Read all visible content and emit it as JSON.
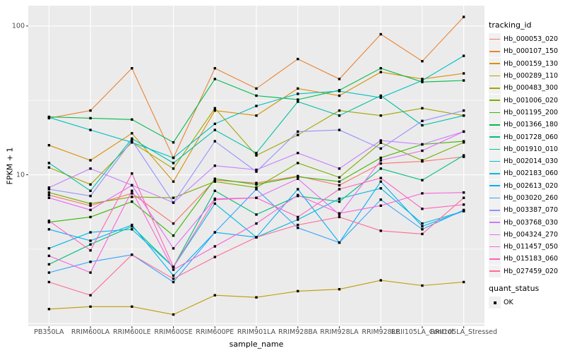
{
  "chart_data": {
    "type": "line",
    "title": "",
    "xlabel": "sample_name",
    "ylabel": "FPKM + 1",
    "y_scale": "log10",
    "ylim": [
      0.96,
      137
    ],
    "y_ticks": [
      100,
      10
    ],
    "y_breaks_major": [
      1,
      10,
      100
    ],
    "y_breaks_minor": [
      3.1623,
      31.623
    ],
    "grid": "on",
    "legend_position": "right",
    "panel_background": "#EBEBEB",
    "marker": "black-square",
    "categories": [
      "PB350LA",
      "RRIM600LA",
      "RRIM600LE",
      "RRIM600SE",
      "RRIM600PE",
      "RRIM901LA",
      "RRIM928BA",
      "RRIM928LA",
      "RRIM928LE",
      "RRII105LA_Control",
      "RRII105LA_Stressed"
    ],
    "series": [
      {
        "name": "Hb_000053_020",
        "color": "#F8766D",
        "values": [
          7.3,
          6.2,
          7.5,
          4.7,
          9.2,
          8.8,
          9.8,
          8.5,
          11.9,
          12.3,
          13.2
        ]
      },
      {
        "name": "Hb_000107_150",
        "color": "#EA8331",
        "values": [
          24,
          27,
          52,
          13,
          52,
          38,
          60,
          44,
          88,
          58,
          115
        ]
      },
      {
        "name": "Hb_000159_130",
        "color": "#D89000",
        "values": [
          15.8,
          12.5,
          19,
          9,
          27,
          25,
          38,
          34,
          49,
          44,
          48
        ]
      },
      {
        "name": "Hb_000289_110",
        "color": "#C09B00",
        "values": [
          1.25,
          1.3,
          1.3,
          1.15,
          1.55,
          1.5,
          1.65,
          1.7,
          1.95,
          1.8,
          1.9
        ]
      },
      {
        "name": "Hb_000483_300",
        "color": "#A3A500",
        "values": [
          11.2,
          8.6,
          16.5,
          11,
          28,
          13.5,
          18.5,
          27,
          25,
          28,
          25
        ]
      },
      {
        "name": "Hb_001006_020",
        "color": "#7CAE00",
        "values": [
          7.6,
          6.4,
          7.1,
          7,
          9,
          8.2,
          12,
          9.6,
          16.4,
          12.5,
          16.5
        ]
      },
      {
        "name": "Hb_001195_200",
        "color": "#39B600",
        "values": [
          4.8,
          5.2,
          6.6,
          3.9,
          9.4,
          8.6,
          9.7,
          9,
          13,
          16,
          16.8
        ]
      },
      {
        "name": "Hb_001366_180",
        "color": "#00BB4E",
        "values": [
          24.5,
          24,
          23.5,
          16.5,
          44,
          34,
          32,
          37,
          52,
          42,
          43
        ]
      },
      {
        "name": "Hb_001728_060",
        "color": "#00BF7D",
        "values": [
          2.5,
          3.4,
          4.5,
          2.4,
          7.8,
          5.4,
          7.2,
          6.6,
          11,
          9.2,
          13.5
        ]
      },
      {
        "name": "Hb_001910_010",
        "color": "#00C1A3",
        "values": [
          12,
          7.8,
          17.5,
          12,
          20,
          14,
          31,
          25,
          34,
          21.5,
          25
        ]
      },
      {
        "name": "Hb_002014_030",
        "color": "#00BFC4",
        "values": [
          24.3,
          20,
          16.5,
          13,
          22,
          29,
          35,
          36.5,
          33,
          43,
          63
        ]
      },
      {
        "name": "Hb_002183_060",
        "color": "#00BADE",
        "values": [
          3.2,
          4.1,
          4.3,
          2.4,
          6.4,
          3.8,
          5,
          6.9,
          8.1,
          4.7,
          5.7
        ]
      },
      {
        "name": "Hb_002613_020",
        "color": "#00B0F6",
        "values": [
          4.3,
          3.6,
          4.6,
          2.1,
          4.1,
          3.8,
          8,
          3.5,
          9,
          4.5,
          5.7
        ]
      },
      {
        "name": "Hb_003020_260",
        "color": "#35A2FF",
        "values": [
          2.2,
          2.6,
          2.9,
          1.9,
          4.1,
          8,
          4.4,
          3.5,
          6.8,
          4.3,
          5.8
        ]
      },
      {
        "name": "Hb_003387_070",
        "color": "#9590FF",
        "values": [
          8,
          7.2,
          17,
          6.5,
          16.8,
          10.5,
          19.5,
          20,
          15,
          23,
          27
        ]
      },
      {
        "name": "Hb_003768_030",
        "color": "#C77CFF",
        "values": [
          8.2,
          11,
          8.5,
          6.5,
          11.5,
          10.8,
          14,
          11,
          17,
          16,
          19.5
        ]
      },
      {
        "name": "Hb_004324_270",
        "color": "#E76BF3",
        "values": [
          7,
          5.8,
          8.5,
          3.2,
          6.9,
          7,
          9.4,
          5.4,
          12.5,
          14.5,
          19.5
        ]
      },
      {
        "name": "Hb_011457_050",
        "color": "#FA62DB",
        "values": [
          2.85,
          2.2,
          7.8,
          2.3,
          3.3,
          4.7,
          7.3,
          5.5,
          6.2,
          7.5,
          7.6
        ]
      },
      {
        "name": "Hb_015183_060",
        "color": "#FF62BC",
        "values": [
          4.9,
          3.1,
          10.2,
          2.4,
          6.8,
          7,
          5.2,
          8,
          9.5,
          5.9,
          6.3
        ]
      },
      {
        "name": "Hb_027459_020",
        "color": "#FF6A98",
        "values": [
          1.9,
          1.55,
          2.9,
          2,
          2.8,
          3.8,
          4.6,
          5.2,
          4.2,
          4,
          7
        ]
      }
    ]
  },
  "legend": {
    "tracking_title": "tracking_id",
    "quant_title": "quant_status",
    "quant_items": [
      {
        "label": "OK",
        "marker": "black-square"
      }
    ]
  }
}
